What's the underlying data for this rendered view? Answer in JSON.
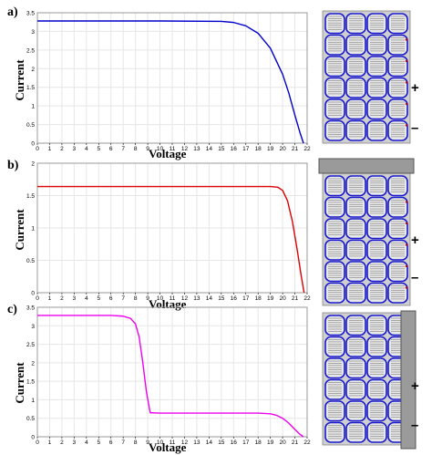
{
  "figure": {
    "panels": [
      {
        "label": "a)",
        "xlabel": "Voltage",
        "ylabel": "Current",
        "shading": "none",
        "plus_sign": "+",
        "minus_sign": "–"
      },
      {
        "label": "b)",
        "xlabel": "Voltage",
        "ylabel": "Current",
        "shading": "top row",
        "plus_sign": "+",
        "minus_sign": "–"
      },
      {
        "label": "c)",
        "xlabel": "Voltage",
        "ylabel": "Current",
        "shading": "right column",
        "plus_sign": "+",
        "minus_sign": "–"
      }
    ]
  },
  "chart_data": [
    {
      "type": "line",
      "color": "#0000cc",
      "xlim": [
        0,
        22
      ],
      "ylim": [
        0,
        3.5
      ],
      "xticks": [
        0,
        1,
        2,
        3,
        4,
        5,
        6,
        7,
        8,
        9,
        10,
        11,
        12,
        13,
        14,
        15,
        16,
        17,
        18,
        19,
        20,
        21,
        22
      ],
      "yticks": [
        0,
        0.5,
        1,
        1.5,
        2,
        2.5,
        3,
        3.5
      ],
      "ytick_labels": [
        "0",
        "0.5",
        "1",
        "1.5",
        "2",
        "2.5",
        "3",
        "3.5"
      ],
      "grid": true,
      "series": [
        {
          "x": [
            0,
            10,
            15,
            16,
            17,
            18,
            19,
            20,
            20.5,
            21,
            21.4,
            21.7
          ],
          "y": [
            3.28,
            3.28,
            3.27,
            3.24,
            3.15,
            2.95,
            2.55,
            1.85,
            1.35,
            0.75,
            0.3,
            0
          ]
        }
      ]
    },
    {
      "type": "line",
      "color": "#dd0000",
      "xlim": [
        0,
        22
      ],
      "ylim": [
        0,
        2
      ],
      "xticks": [
        0,
        1,
        2,
        3,
        4,
        5,
        6,
        7,
        8,
        9,
        10,
        11,
        12,
        13,
        14,
        15,
        16,
        17,
        18,
        19,
        20,
        21,
        22
      ],
      "yticks": [
        0,
        0.5,
        1,
        1.5,
        2
      ],
      "ytick_labels": [
        "0",
        "0.5",
        "1",
        "1.5",
        "2"
      ],
      "grid": true,
      "series": [
        {
          "x": [
            0,
            10,
            19,
            19.6,
            20,
            20.4,
            20.8,
            21.2,
            21.5,
            21.75
          ],
          "y": [
            1.64,
            1.64,
            1.64,
            1.63,
            1.58,
            1.42,
            1.1,
            0.65,
            0.28,
            0
          ]
        }
      ]
    },
    {
      "type": "line",
      "color": "#ee00ee",
      "xlim": [
        0,
        22
      ],
      "ylim": [
        0,
        3.5
      ],
      "xticks": [
        0,
        1,
        2,
        3,
        4,
        5,
        6,
        7,
        8,
        9,
        10,
        11,
        12,
        13,
        14,
        15,
        16,
        17,
        18,
        19,
        20,
        21,
        22
      ],
      "yticks": [
        0,
        0.5,
        1,
        1.5,
        2,
        2.5,
        3,
        3.5
      ],
      "ytick_labels": [
        "0",
        "0.5",
        "1",
        "1.5",
        "2",
        "2.5",
        "3",
        "3.5"
      ],
      "grid": true,
      "series": [
        {
          "x": [
            0,
            6,
            7,
            7.6,
            8,
            8.3,
            8.6,
            8.9,
            9.2,
            10,
            15,
            18,
            19,
            19.5,
            20,
            20.5,
            21,
            21.4,
            21.7
          ],
          "y": [
            3.28,
            3.28,
            3.26,
            3.2,
            3.05,
            2.7,
            2.0,
            1.2,
            0.65,
            0.64,
            0.64,
            0.64,
            0.62,
            0.58,
            0.5,
            0.37,
            0.2,
            0.07,
            0
          ]
        }
      ]
    }
  ]
}
